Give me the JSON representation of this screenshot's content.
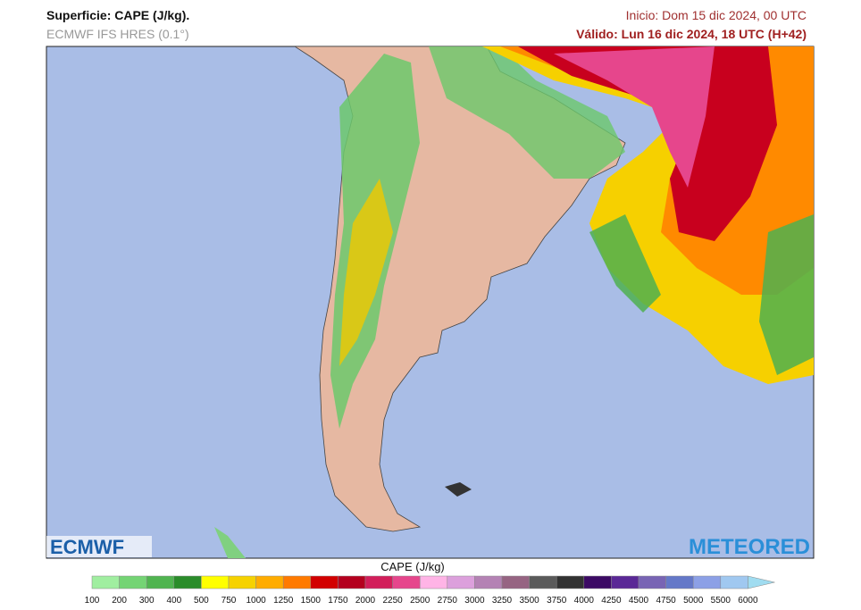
{
  "header": {
    "title": "Superficie: CAPE (J/kg).",
    "model": "ECMWF IFS HRES (0.1°)",
    "init": "Inicio: Dom 15 dic 2024, 00 UTC",
    "valid": "Válido: Lun 16 dic 2024, 18 UTC (H+42)"
  },
  "logos": {
    "left": "ECMWF",
    "right": "METEORED"
  },
  "colorbar": {
    "label": "CAPE (J/kg)",
    "ticks": [
      100,
      200,
      300,
      400,
      500,
      750,
      1000,
      1250,
      1500,
      1750,
      2000,
      2250,
      2500,
      2750,
      3000,
      3250,
      3500,
      3750,
      4000,
      4250,
      4500,
      4750,
      5000,
      5500,
      6000
    ],
    "colors": [
      "#a0eea0",
      "#74d474",
      "#50b450",
      "#2a8c2a",
      "#ffff00",
      "#f6d200",
      "#ffac00",
      "#ff7a00",
      "#d20000",
      "#b4001e",
      "#d21e5a",
      "#e6468c",
      "#ffb4e6",
      "#dca0dc",
      "#b482b4",
      "#966482",
      "#5a5a5a",
      "#323232",
      "#3c0a64",
      "#5a2896",
      "#7864b4",
      "#6478c8",
      "#8ca0e6",
      "#a0c8f0"
    ],
    "extend_color": "#a0dcf0"
  }
}
